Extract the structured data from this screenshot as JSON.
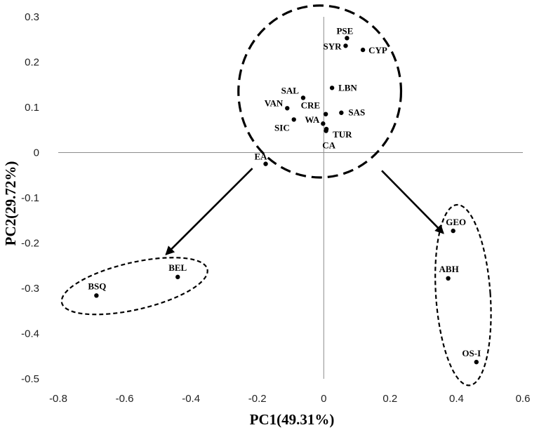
{
  "chart_data": {
    "type": "scatter",
    "title": "",
    "xlabel": "PC1(49.31%)",
    "ylabel": "PC2(29.72%)",
    "xlim": [
      -0.8,
      0.6
    ],
    "ylim": [
      -0.5,
      0.3
    ],
    "xticks": [
      -0.8,
      -0.6,
      -0.4,
      -0.2,
      0,
      0.2,
      0.4,
      0.6
    ],
    "xtick_labels": [
      "-0.8",
      "-0.6",
      "-0.4",
      "-0.2",
      "0",
      "0.2",
      "0.4",
      "0.6"
    ],
    "yticks": [
      -0.5,
      -0.4,
      -0.3,
      -0.2,
      -0.1,
      0,
      0.1,
      0.2,
      0.3
    ],
    "ytick_labels": [
      "-0.5",
      "-0.4",
      "-0.3",
      "-0.2",
      "-0.1",
      "0",
      "0.1",
      "0.2",
      "0.3"
    ],
    "grid": false,
    "legend": "none",
    "marker_color": "#000000",
    "points": [
      {
        "label": "PSE",
        "x": 0.07,
        "y": 0.253
      },
      {
        "label": "SYR",
        "x": 0.066,
        "y": 0.236
      },
      {
        "label": "CYP",
        "x": 0.118,
        "y": 0.227
      },
      {
        "label": "SAL",
        "x": -0.062,
        "y": 0.121
      },
      {
        "label": "LBN",
        "x": 0.025,
        "y": 0.143
      },
      {
        "label": "VAN",
        "x": -0.11,
        "y": 0.098
      },
      {
        "label": "CRE",
        "x": 0.006,
        "y": 0.085
      },
      {
        "label": "SAS",
        "x": 0.053,
        "y": 0.088
      },
      {
        "label": "WA",
        "x": -0.002,
        "y": 0.064
      },
      {
        "label": "SIC",
        "x": -0.09,
        "y": 0.073
      },
      {
        "label": "TUR",
        "x": 0.008,
        "y": 0.052
      },
      {
        "label": "CA",
        "x": 0.007,
        "y": 0.048
      },
      {
        "label": "EA",
        "x": -0.175,
        "y": -0.025
      },
      {
        "label": "BEL",
        "x": -0.44,
        "y": -0.275
      },
      {
        "label": "BSQ",
        "x": -0.685,
        "y": -0.316
      },
      {
        "label": "GEO",
        "x": 0.39,
        "y": -0.173
      },
      {
        "label": "ABH",
        "x": 0.375,
        "y": -0.278
      },
      {
        "label": "OS-I",
        "x": 0.46,
        "y": -0.463
      }
    ],
    "annotations": {
      "clusters": [
        {
          "name": "main-cluster",
          "cx": -0.012,
          "cy": 0.135,
          "rx": 0.245,
          "ry": 0.19,
          "rotation": 0
        },
        {
          "name": "basque-cluster",
          "cx": -0.57,
          "cy": -0.295,
          "rx": 0.225,
          "ry": 0.052,
          "rotation": -13
        },
        {
          "name": "caucasus-cluster",
          "cx": 0.42,
          "cy": -0.315,
          "rx": 0.082,
          "ry": 0.2,
          "rotation": -4
        }
      ],
      "arrows": [
        {
          "from": [
            -0.215,
            -0.035
          ],
          "to": [
            -0.475,
            -0.225
          ]
        },
        {
          "from": [
            0.175,
            -0.04
          ],
          "to": [
            0.36,
            -0.178
          ]
        }
      ]
    }
  }
}
